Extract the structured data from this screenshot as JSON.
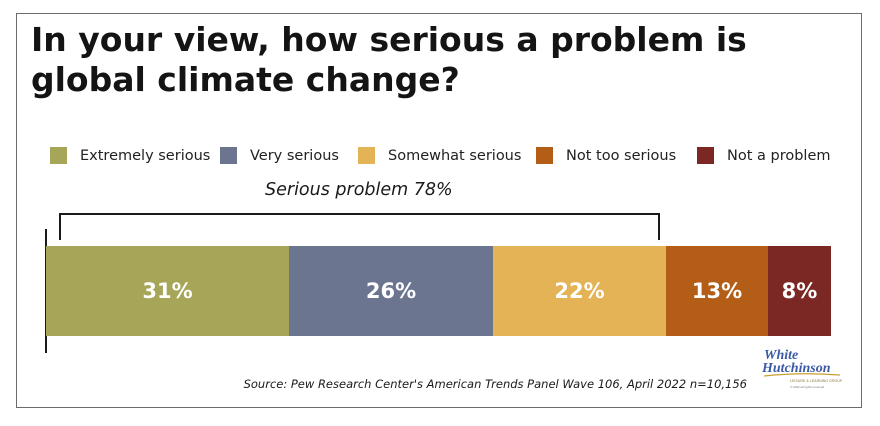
{
  "title": "In your view, how serious a problem is global climate change?",
  "bracket_label": "Serious problem 78%",
  "source": "Source: Pew Research Center's American Trends Panel Wave 106, April 2022 n=10,156",
  "logo": {
    "text_line1": "White",
    "text_line2": "Hutchinson",
    "tagline": "LEISURE & LEARNING GROUP",
    "copyright": "© 2022 all rights reserved"
  },
  "chart_data": {
    "type": "bar",
    "orientation": "horizontal-stacked",
    "title": "In your view, how serious a problem is global climate change?",
    "categories": [
      "Extremely serious",
      "Very serious",
      "Somewhat serious",
      "Not too serious",
      "Not a problem"
    ],
    "values": [
      31,
      26,
      22,
      13,
      8
    ],
    "labels": [
      "31%",
      "26%",
      "22%",
      "13%",
      "8%"
    ],
    "colors": [
      "#a7a557",
      "#6b7590",
      "#e3b356",
      "#b35d17",
      "#7b2723"
    ],
    "unit": "%",
    "legend_position": "top",
    "annotation": {
      "text": "Serious problem 78%",
      "spans": [
        "Extremely serious",
        "Very serious",
        "Somewhat serious"
      ]
    },
    "grid": false
  }
}
